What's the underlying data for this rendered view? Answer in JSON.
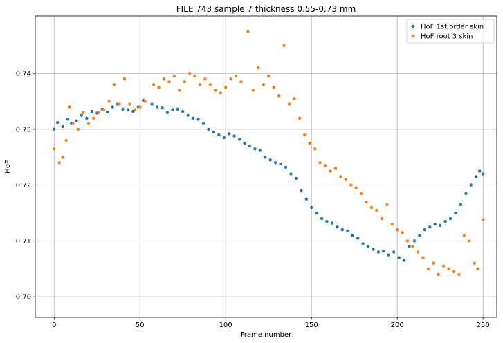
{
  "chart_data": {
    "type": "scatter",
    "title": "FILE 743 sample 7 thickness 0.55-0.73 mm",
    "xlabel": "Frame number",
    "ylabel": "HoF",
    "xlim": [
      -11,
      258
    ],
    "ylim": [
      0.6963,
      0.7503
    ],
    "xticks": [
      0,
      50,
      100,
      150,
      200,
      250
    ],
    "yticks": [
      0.7,
      0.71,
      0.72,
      0.73,
      0.74
    ],
    "xtick_labels": [
      "0",
      "50",
      "100",
      "150",
      "200",
      "250"
    ],
    "ytick_labels": [
      "0.70",
      "0.71",
      "0.72",
      "0.73",
      "0.74"
    ],
    "grid": true,
    "legend_position": "top-right",
    "series": [
      {
        "name": "HoF 1st order skin",
        "color": "#1f77b4",
        "x": [
          0,
          2,
          5,
          8,
          10,
          13,
          16,
          19,
          22,
          25,
          28,
          31,
          34,
          37,
          40,
          43,
          46,
          49,
          52,
          57,
          60,
          63,
          66,
          69,
          72,
          75,
          78,
          81,
          84,
          87,
          90,
          93,
          96,
          99,
          102,
          105,
          108,
          111,
          114,
          117,
          120,
          123,
          126,
          129,
          132,
          135,
          138,
          141,
          144,
          147,
          150,
          153,
          156,
          159,
          162,
          165,
          168,
          171,
          174,
          177,
          180,
          183,
          186,
          189,
          192,
          195,
          198,
          201,
          204,
          207,
          210,
          213,
          216,
          219,
          222,
          225,
          228,
          231,
          234,
          237,
          240,
          243,
          246,
          248,
          250
        ],
        "y": [
          0.73,
          0.7312,
          0.7305,
          0.7318,
          0.731,
          0.7315,
          0.7325,
          0.732,
          0.7332,
          0.7329,
          0.7336,
          0.7331,
          0.734,
          0.7345,
          0.7336,
          0.7335,
          0.7332,
          0.734,
          0.7352,
          0.7345,
          0.734,
          0.7338,
          0.733,
          0.7335,
          0.7336,
          0.7332,
          0.7325,
          0.732,
          0.7318,
          0.731,
          0.73,
          0.7295,
          0.729,
          0.7285,
          0.7292,
          0.7288,
          0.7282,
          0.7275,
          0.727,
          0.7265,
          0.7262,
          0.725,
          0.7245,
          0.724,
          0.7238,
          0.7232,
          0.722,
          0.7212,
          0.719,
          0.7175,
          0.716,
          0.715,
          0.714,
          0.7135,
          0.7132,
          0.7125,
          0.712,
          0.7118,
          0.711,
          0.7105,
          0.7095,
          0.709,
          0.7085,
          0.708,
          0.7082,
          0.7075,
          0.708,
          0.707,
          0.7065,
          0.709,
          0.71,
          0.711,
          0.712,
          0.7125,
          0.713,
          0.7128,
          0.7135,
          0.714,
          0.715,
          0.7165,
          0.7185,
          0.72,
          0.7215,
          0.7225,
          0.722
        ]
      },
      {
        "name": "HoF root 3 skin",
        "color": "#ff7f0e",
        "x": [
          0,
          3,
          5,
          7,
          9,
          11,
          14,
          17,
          20,
          23,
          26,
          29,
          32,
          35,
          38,
          41,
          44,
          47,
          50,
          53,
          58,
          61,
          64,
          67,
          70,
          73,
          76,
          79,
          82,
          85,
          88,
          91,
          94,
          97,
          100,
          103,
          106,
          109,
          113,
          116,
          119,
          122,
          125,
          128,
          131,
          134,
          137,
          140,
          143,
          146,
          149,
          152,
          155,
          158,
          161,
          164,
          167,
          170,
          173,
          176,
          179,
          182,
          185,
          188,
          191,
          194,
          197,
          200,
          203,
          206,
          209,
          212,
          215,
          218,
          221,
          224,
          227,
          230,
          233,
          236,
          239,
          242,
          245,
          247,
          250
        ],
        "y": [
          0.7265,
          0.724,
          0.725,
          0.728,
          0.734,
          0.731,
          0.73,
          0.733,
          0.731,
          0.732,
          0.733,
          0.7335,
          0.735,
          0.738,
          0.7345,
          0.739,
          0.7345,
          0.7335,
          0.734,
          0.735,
          0.738,
          0.7375,
          0.739,
          0.7385,
          0.7395,
          0.737,
          0.7385,
          0.74,
          0.7395,
          0.738,
          0.739,
          0.738,
          0.737,
          0.7365,
          0.7375,
          0.739,
          0.7395,
          0.7385,
          0.7475,
          0.737,
          0.741,
          0.738,
          0.7395,
          0.7375,
          0.736,
          0.745,
          0.7345,
          0.7355,
          0.732,
          0.729,
          0.7275,
          0.7265,
          0.724,
          0.7235,
          0.7225,
          0.723,
          0.7215,
          0.721,
          0.72,
          0.7195,
          0.7185,
          0.717,
          0.716,
          0.7155,
          0.714,
          0.7165,
          0.713,
          0.712,
          0.7115,
          0.71,
          0.709,
          0.708,
          0.707,
          0.705,
          0.706,
          0.704,
          0.7055,
          0.705,
          0.7045,
          0.704,
          0.711,
          0.71,
          0.706,
          0.705,
          0.7138
        ]
      }
    ]
  }
}
